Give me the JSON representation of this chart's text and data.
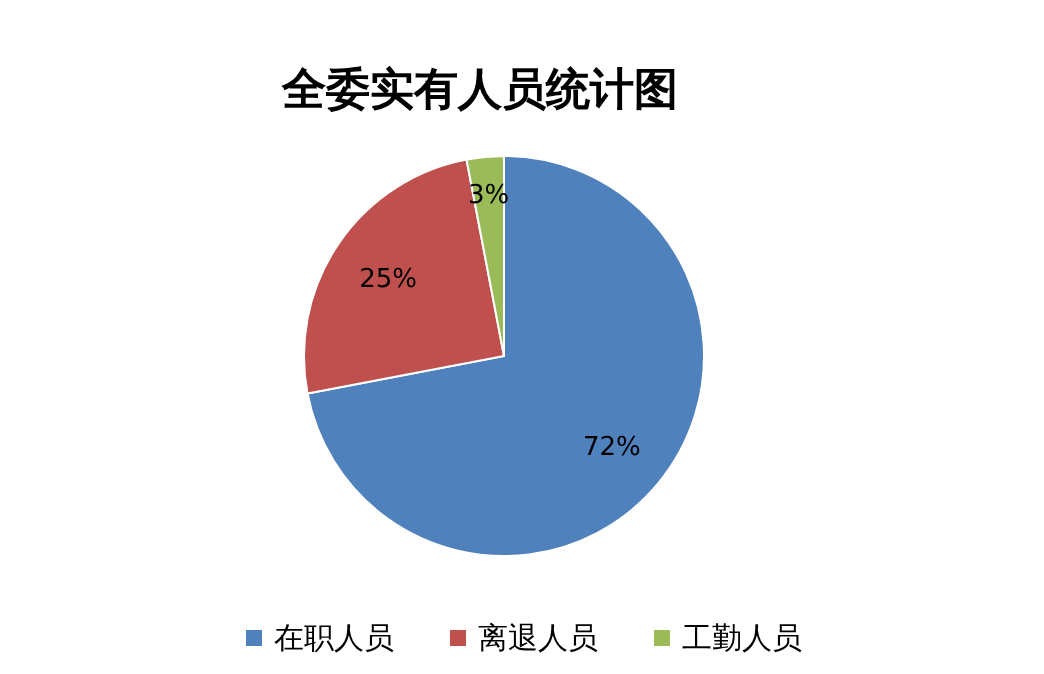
{
  "chart_data": {
    "type": "pie",
    "title": "全委实有人员统计图",
    "categories": [
      "在职人员",
      "离退人员",
      "工勤人员"
    ],
    "values": [
      72,
      25,
      3
    ],
    "colors": [
      "#4f81bd",
      "#c0504d",
      "#9bbb59"
    ],
    "value_labels": [
      "72%",
      "25%",
      "3%"
    ],
    "legend": "bottom"
  }
}
